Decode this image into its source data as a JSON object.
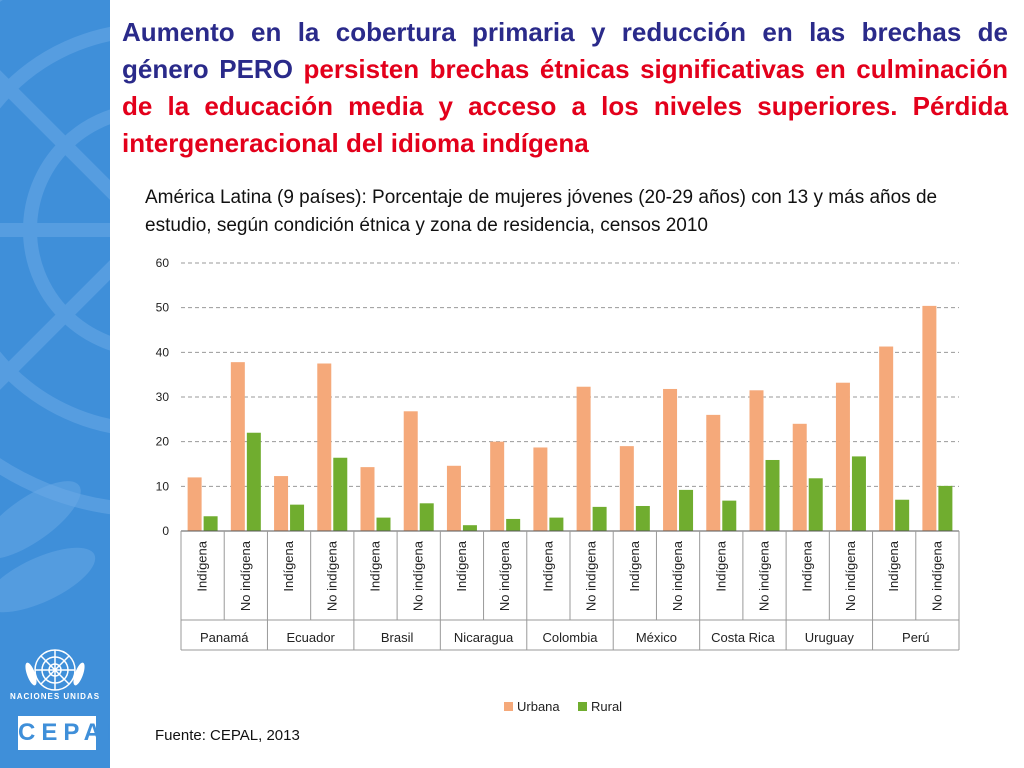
{
  "headline": {
    "part1": "Aumento en la cobertura primaria y reducción en las brechas de género PERO ",
    "part2": "persisten brechas étnicas significativas en culminación de la educación media y acceso a los niveles superiores. Pérdida intergeneracional del idioma indígena"
  },
  "chart_data": {
    "type": "bar",
    "title": "América Latina (9 países): Porcentaje de mujeres jóvenes (20-29 años) con 13 y más años de estudio, según condición étnica y zona de residencia, censos 2010",
    "ylim": [
      0,
      60
    ],
    "yticks": [
      0,
      10,
      20,
      30,
      40,
      50,
      60
    ],
    "grid": true,
    "legend_position": "bottom",
    "groups": [
      "Panamá",
      "Ecuador",
      "Brasil",
      "Nicaragua",
      "Colombia",
      "México",
      "Costa Rica",
      "Uruguay",
      "Perú"
    ],
    "subcategories": [
      "Indígena",
      "No indígena"
    ],
    "categories": [
      "Panamá Indígena",
      "Panamá No indígena",
      "Ecuador Indígena",
      "Ecuador No indígena",
      "Brasil Indígena",
      "Brasil No indígena",
      "Nicaragua Indígena",
      "Nicaragua No indígena",
      "Colombia Indígena",
      "Colombia No indígena",
      "México Indígena",
      "México No indígena",
      "Costa Rica Indígena",
      "Costa Rica No indígena",
      "Uruguay Indígena",
      "Uruguay No indígena",
      "Perú Indígena",
      "Perú No indígena"
    ],
    "series": [
      {
        "name": "Urbana",
        "color": "#f5a97a",
        "values": [
          12.0,
          37.8,
          12.3,
          37.5,
          14.3,
          26.8,
          14.6,
          20.0,
          18.7,
          32.3,
          19.0,
          31.8,
          26.0,
          31.5,
          24.0,
          33.2,
          41.3,
          50.4
        ]
      },
      {
        "name": "Rural",
        "color": "#70ad2f",
        "values": [
          3.3,
          22.0,
          5.9,
          16.4,
          3.0,
          6.2,
          1.3,
          2.7,
          3.0,
          5.4,
          5.6,
          9.2,
          6.8,
          15.9,
          11.8,
          16.7,
          7.0,
          10.1
        ]
      }
    ]
  },
  "source": "Fuente: CEPAL, 2013",
  "logo": {
    "org_label": "NACIONES UNIDAS",
    "name": "CEPAL"
  }
}
